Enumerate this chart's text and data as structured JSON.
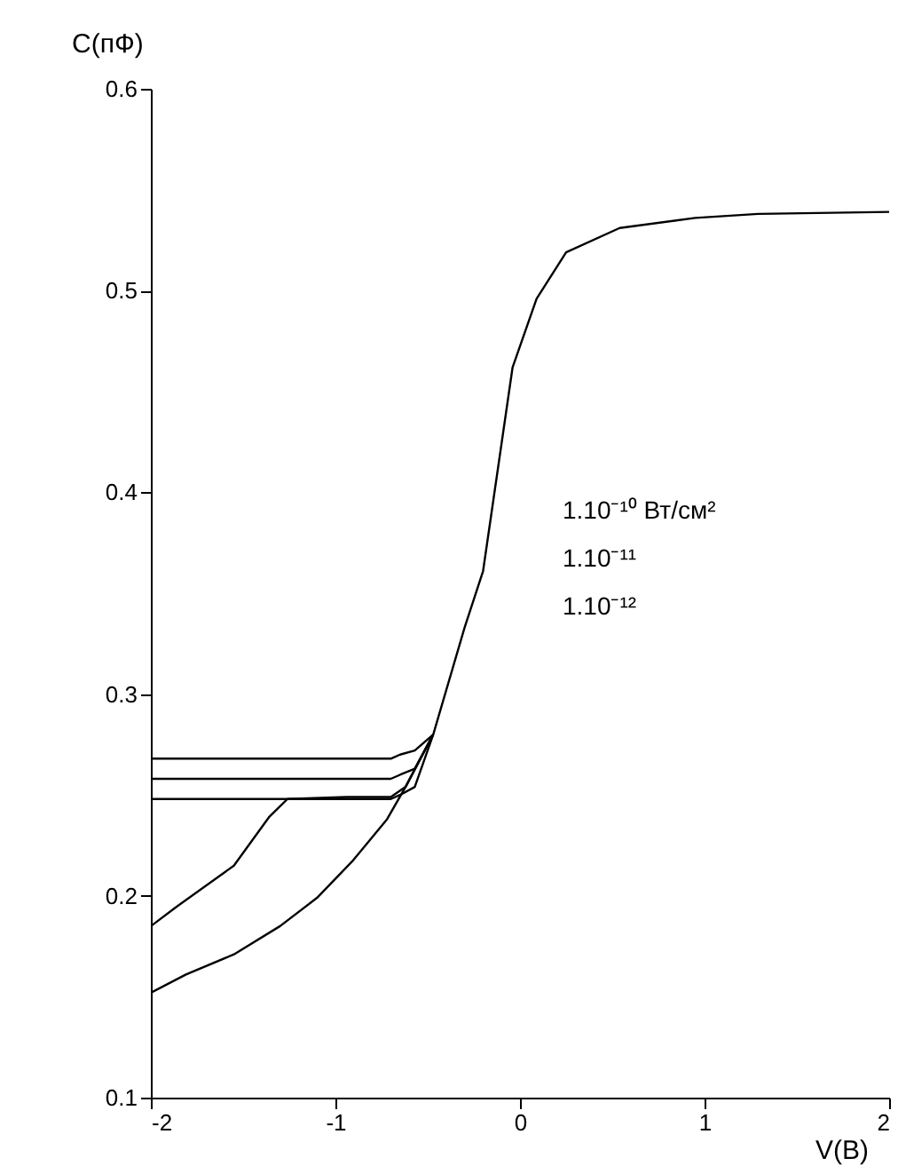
{
  "chart_data": {
    "type": "line",
    "xlabel": "V(B)",
    "ylabel": "C(пФ)",
    "xlim": [
      -2,
      2
    ],
    "ylim": [
      0.1,
      0.6
    ],
    "xticks": [
      -2,
      -1,
      0,
      1,
      2
    ],
    "yticks": [
      0.1,
      0.2,
      0.3,
      0.4,
      0.5,
      0.6
    ],
    "grid": false,
    "marker": "none",
    "line_style": "solid",
    "annotations": [
      "1.10⁻¹⁰ Вт/см²",
      "1.10⁻¹¹",
      "1.10⁻¹²"
    ],
    "series": [
      {
        "color": "#000000",
        "x": [
          -2,
          -1.81,
          -1.55,
          -1.3,
          -1.1,
          -0.91,
          -0.72,
          -0.62,
          -0.47,
          -0.3,
          -0.2,
          -0.04,
          0.09,
          0.25,
          0.54,
          0.95,
          1.29,
          2
        ],
        "values": [
          0.152,
          0.161,
          0.171,
          0.185,
          0.199,
          0.217,
          0.238,
          0.254,
          0.28,
          0.333,
          0.361,
          0.462,
          0.496,
          0.519,
          0.531,
          0.536,
          0.538,
          0.539
        ]
      },
      {
        "color": "#000000",
        "x": [
          -2,
          -1.87,
          -1.55,
          -1.36,
          -1.26,
          -0.94,
          -0.7,
          -0.62,
          -0.47
        ],
        "values": [
          0.185,
          0.194,
          0.215,
          0.239,
          0.248,
          0.249,
          0.249,
          0.254,
          0.28
        ]
      },
      {
        "color": "#000000",
        "x": [
          -2,
          -0.7,
          -0.65,
          -0.57,
          -0.47
        ],
        "values": [
          0.248,
          0.248,
          0.25,
          0.254,
          0.28
        ]
      },
      {
        "color": "#000000",
        "x": [
          -2,
          -0.7,
          -0.65,
          -0.57,
          -0.47
        ],
        "values": [
          0.258,
          0.258,
          0.26,
          0.263,
          0.28
        ]
      },
      {
        "color": "#000000",
        "x": [
          -2,
          -0.7,
          -0.65,
          -0.57,
          -0.47
        ],
        "values": [
          0.268,
          0.268,
          0.27,
          0.272,
          0.28
        ]
      }
    ]
  }
}
